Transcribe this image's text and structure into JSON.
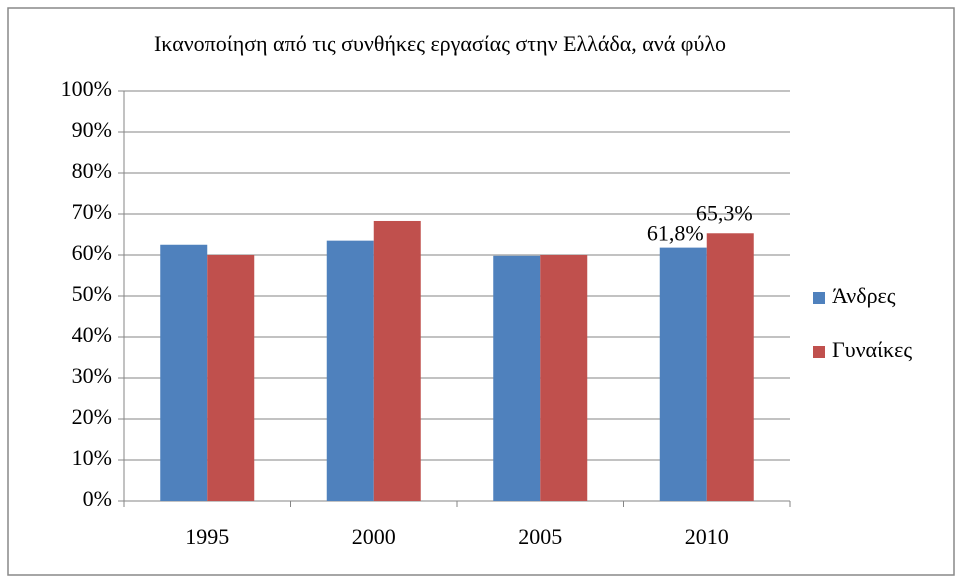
{
  "chart_data": {
    "type": "bar",
    "title": "Ικανοποίηση από τις συνθήκες εργασίας στην Ελλάδα, ανά φύλο",
    "categories": [
      "1995",
      "2000",
      "2005",
      "2010"
    ],
    "series": [
      {
        "name": "Άνδρες",
        "color": "#4f81bd",
        "values": [
          62.5,
          63.5,
          59.8,
          61.8
        ],
        "value_labels": [
          null,
          null,
          null,
          "61,8%"
        ]
      },
      {
        "name": "Γυναίκες",
        "color": "#c0504d",
        "values": [
          60,
          68.3,
          60,
          65.3
        ],
        "value_labels": [
          null,
          null,
          null,
          "65,3%"
        ]
      }
    ],
    "ylim": [
      0,
      100
    ],
    "yticks": [
      {
        "value": 0,
        "label": "0%"
      },
      {
        "value": 10,
        "label": "10%"
      },
      {
        "value": 20,
        "label": "20%"
      },
      {
        "value": 30,
        "label": "30%"
      },
      {
        "value": 40,
        "label": "40%"
      },
      {
        "value": 50,
        "label": "50%"
      },
      {
        "value": 60,
        "label": "60%"
      },
      {
        "value": 70,
        "label": "70%"
      },
      {
        "value": 80,
        "label": "80%"
      },
      {
        "value": 90,
        "label": "90%"
      },
      {
        "value": 100,
        "label": "100%"
      }
    ],
    "grid": true,
    "legend": "right"
  }
}
